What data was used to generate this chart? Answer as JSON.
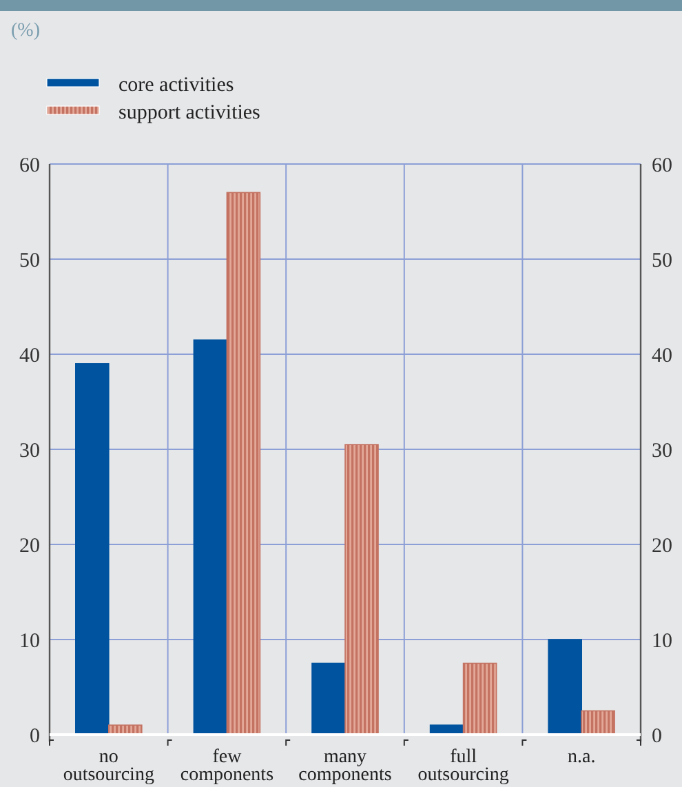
{
  "chart_data": {
    "type": "bar",
    "annotations": [
      "(%)"
    ],
    "categories": [
      "no outsourcing",
      "few components",
      "many components",
      "full outsourcing",
      "n.a."
    ],
    "series": [
      {
        "name": "core activities",
        "color": "#00539f",
        "values": [
          39,
          41.5,
          7.5,
          1,
          10
        ]
      },
      {
        "name": "support activities",
        "color": "#c47262",
        "values": [
          1,
          57,
          30.5,
          7.5,
          2.5
        ]
      }
    ],
    "ylim": [
      0,
      60
    ],
    "yticks": [
      0,
      10,
      20,
      30,
      40,
      50,
      60
    ],
    "y2lim": [
      0,
      60
    ],
    "y2ticks": [
      0,
      10,
      20,
      30,
      40,
      50,
      60
    ],
    "grid": true,
    "legend": "top left"
  }
}
